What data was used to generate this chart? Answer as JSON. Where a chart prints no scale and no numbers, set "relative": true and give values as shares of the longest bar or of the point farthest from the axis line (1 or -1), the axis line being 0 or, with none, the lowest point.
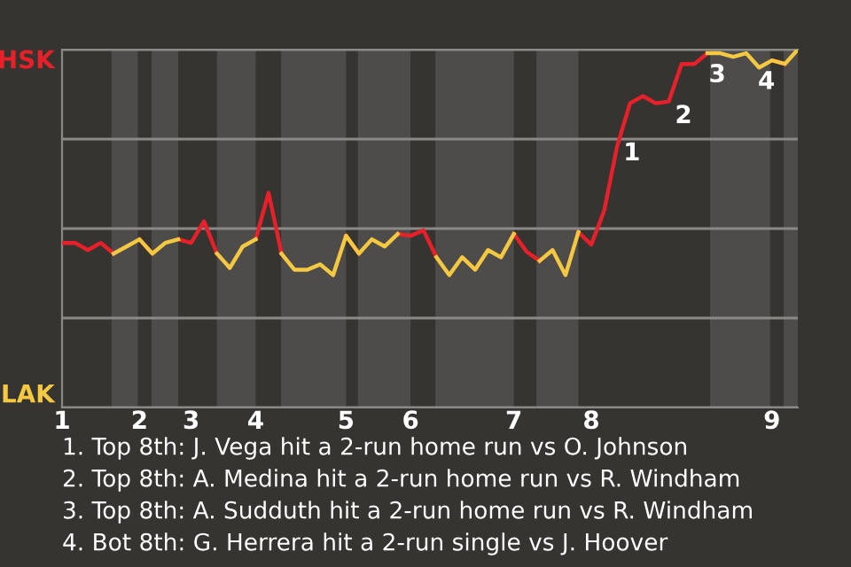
{
  "chart_data": {
    "type": "line",
    "relative": true,
    "categories": [
      "1",
      null,
      null,
      null,
      null,
      null,
      "2",
      null,
      null,
      null,
      "3",
      null,
      null,
      null,
      null,
      "4",
      null,
      null,
      null,
      null,
      null,
      null,
      "5",
      null,
      null,
      null,
      null,
      "6",
      null,
      null,
      null,
      null,
      null,
      null,
      null,
      "7",
      null,
      null,
      null,
      null,
      null,
      "8",
      null,
      null,
      null,
      null,
      null,
      null,
      null,
      null,
      null,
      null,
      null,
      null,
      null,
      "9",
      null,
      null
    ],
    "series": [
      {
        "color": "#e8202a",
        "values": [
          0.46,
          0.46,
          0.44,
          0.46,
          0.43,
          null,
          0.47,
          0.43,
          null,
          0.47,
          0.46,
          0.52,
          0.43,
          null,
          null,
          0.47,
          0.6,
          0.43,
          null,
          null,
          null,
          null,
          0.48,
          0.43,
          null,
          null,
          0.485,
          0.48,
          0.495,
          0.42,
          null,
          null,
          null,
          null,
          null,
          0.485,
          0.435,
          0.41,
          null,
          null,
          0.49,
          0.455,
          0.55,
          0.73,
          0.85,
          0.87,
          0.85,
          0.855,
          0.96,
          0.96,
          0.99,
          null,
          null,
          null,
          null,
          0.97,
          0.96,
          null
        ]
      },
      {
        "color": "#f5c842",
        "values": [
          null,
          null,
          null,
          null,
          0.43,
          0.45,
          0.47,
          0.43,
          0.46,
          0.47,
          null,
          null,
          0.43,
          0.39,
          0.45,
          0.47,
          null,
          0.43,
          0.385,
          0.385,
          0.4,
          0.37,
          0.48,
          0.43,
          0.47,
          0.45,
          0.485,
          null,
          null,
          0.42,
          0.37,
          0.42,
          0.385,
          0.44,
          0.42,
          0.485,
          null,
          0.41,
          0.44,
          0.37,
          0.49,
          null,
          null,
          null,
          null,
          null,
          null,
          null,
          null,
          null,
          0.99,
          0.99,
          0.98,
          0.99,
          0.95,
          0.97,
          0.96,
          1
        ]
      }
    ],
    "grid": "y",
    "marker": "none",
    "line_style": "solid",
    "annotations": [
      "HSK",
      "LAK",
      "1",
      "2",
      "3",
      "4",
      "1. Top 8th: J. Vega hit a 2-run home run vs O. Johnson",
      "2. Top 8th: A. Medina hit a 2-run home run vs R. Windham",
      "3. Top 8th: A. Sudduth hit a 2-run home run vs R. Windham",
      "4. Bot 8th: G. Herrera hit a 2-run single vs J. Hoover"
    ]
  }
}
